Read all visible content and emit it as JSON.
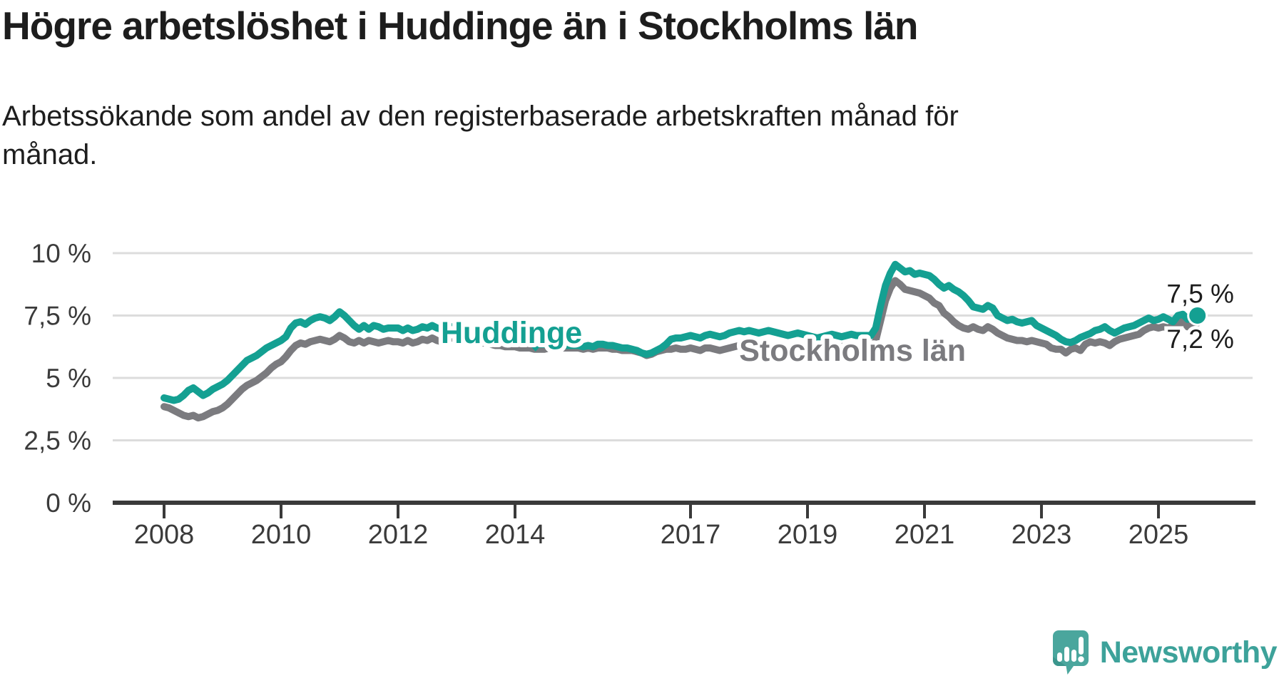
{
  "title": "Högre arbetslöshet i Huddinge än i Stockholms län",
  "subtitle": "Arbetssökande som andel av den registerbaserade arbetskraften månad för månad.",
  "branding": {
    "name": "Newsworthy"
  },
  "colors": {
    "background": "#ffffff",
    "text": "#1d1d1d",
    "axis": "#3a3a3a",
    "axis_text": "#3b3b3b",
    "grid": "#dcdcdc",
    "huddinge": "#14a092",
    "stockholm": "#7b7b7f",
    "logo": "#4aa69d",
    "logo_text": "#3da29a"
  },
  "chart_data": {
    "type": "line",
    "title": "Högre arbetslöshet i Huddinge än i Stockholms län",
    "subtitle": "Arbetssökande som andel av den registerbaserade arbetskraften månad för månad.",
    "unit": "%",
    "frequency": "monthly",
    "x_start": "2008-01",
    "x_end": "2025-09",
    "ylim": [
      0,
      10.7
    ],
    "grid": true,
    "legend_position": "inline-labels",
    "y_axis": {
      "ticks": [
        {
          "label": "10 %",
          "value": 10
        },
        {
          "label": "7,5 %",
          "value": 7.5
        },
        {
          "label": "5 %",
          "value": 5
        },
        {
          "label": "2,5 %",
          "value": 2.5
        },
        {
          "label": "0 %",
          "value": 0
        }
      ]
    },
    "x_axis": {
      "ticks": [
        {
          "label": "2008",
          "year": 2008
        },
        {
          "label": "2010",
          "year": 2010
        },
        {
          "label": "2012",
          "year": 2012
        },
        {
          "label": "2014",
          "year": 2014
        },
        {
          "label": "2017",
          "year": 2017
        },
        {
          "label": "2019",
          "year": 2019
        },
        {
          "label": "2021",
          "year": 2021
        },
        {
          "label": "2023",
          "year": 2023
        },
        {
          "label": "2025",
          "year": 2025
        }
      ]
    },
    "series": [
      {
        "name": "Huddinge",
        "color": "#14a092",
        "end_label": "7,5 %",
        "end_value": 7.5,
        "label_anchor": {
          "year": 2013.94,
          "value": 6.86
        },
        "marker": {
          "year": 2014.35,
          "value": 6.43
        },
        "values": [
          4.2,
          4.15,
          4.1,
          4.15,
          4.3,
          4.5,
          4.6,
          4.45,
          4.3,
          4.4,
          4.55,
          4.65,
          4.75,
          4.9,
          5.1,
          5.3,
          5.5,
          5.7,
          5.8,
          5.9,
          6.05,
          6.2,
          6.3,
          6.4,
          6.5,
          6.65,
          7.0,
          7.2,
          7.25,
          7.15,
          7.3,
          7.4,
          7.45,
          7.4,
          7.3,
          7.45,
          7.65,
          7.5,
          7.3,
          7.1,
          6.95,
          7.1,
          6.95,
          7.1,
          7.05,
          6.95,
          7.0,
          7.0,
          7.0,
          6.9,
          7.0,
          6.9,
          6.95,
          7.05,
          7.0,
          7.1,
          7.0,
          6.95,
          7.0,
          7.05,
          7.0,
          6.95,
          6.9,
          6.85,
          6.8,
          6.75,
          6.7,
          6.65,
          6.6,
          6.55,
          6.5,
          6.5,
          6.5,
          6.45,
          6.45,
          6.4,
          6.4,
          6.35,
          6.35,
          6.3,
          6.3,
          6.3,
          6.3,
          6.3,
          6.3,
          6.3,
          6.25,
          6.3,
          6.25,
          6.35,
          6.35,
          6.3,
          6.3,
          6.25,
          6.2,
          6.2,
          6.15,
          6.1,
          6.0,
          5.95,
          6.0,
          6.1,
          6.2,
          6.35,
          6.55,
          6.6,
          6.6,
          6.65,
          6.7,
          6.65,
          6.6,
          6.7,
          6.75,
          6.7,
          6.65,
          6.7,
          6.8,
          6.85,
          6.9,
          6.85,
          6.9,
          6.85,
          6.8,
          6.85,
          6.9,
          6.85,
          6.8,
          6.75,
          6.7,
          6.75,
          6.8,
          6.75,
          6.7,
          6.65,
          6.6,
          6.65,
          6.7,
          6.75,
          6.7,
          6.65,
          6.7,
          6.75,
          6.7,
          6.7,
          6.7,
          6.7,
          7.0,
          7.9,
          8.7,
          9.2,
          9.55,
          9.4,
          9.25,
          9.3,
          9.15,
          9.2,
          9.15,
          9.1,
          8.95,
          8.75,
          8.6,
          8.7,
          8.55,
          8.45,
          8.3,
          8.1,
          7.85,
          7.8,
          7.75,
          7.9,
          7.8,
          7.5,
          7.4,
          7.3,
          7.35,
          7.25,
          7.2,
          7.25,
          7.3,
          7.1,
          7.0,
          6.9,
          6.8,
          6.7,
          6.55,
          6.45,
          6.42,
          6.5,
          6.62,
          6.7,
          6.78,
          6.9,
          6.95,
          7.05,
          6.9,
          6.8,
          6.9,
          7.0,
          7.05,
          7.1,
          7.2,
          7.3,
          7.4,
          7.3,
          7.35,
          7.45,
          7.35,
          7.25,
          7.5,
          7.55,
          7.35,
          7.45,
          7.5
        ]
      },
      {
        "name": "Stockholms län",
        "color": "#7b7b7f",
        "end_label": "7,2 %",
        "end_value": 7.2,
        "label_anchor": {
          "year": 2019.77,
          "value": 6.14
        },
        "values": [
          3.85,
          3.8,
          3.7,
          3.6,
          3.5,
          3.45,
          3.5,
          3.4,
          3.45,
          3.55,
          3.65,
          3.7,
          3.8,
          3.95,
          4.15,
          4.35,
          4.55,
          4.7,
          4.8,
          4.9,
          5.05,
          5.2,
          5.4,
          5.55,
          5.65,
          5.85,
          6.1,
          6.3,
          6.4,
          6.35,
          6.45,
          6.5,
          6.55,
          6.5,
          6.45,
          6.55,
          6.7,
          6.6,
          6.45,
          6.4,
          6.5,
          6.4,
          6.5,
          6.45,
          6.4,
          6.45,
          6.5,
          6.45,
          6.45,
          6.4,
          6.5,
          6.4,
          6.45,
          6.55,
          6.5,
          6.6,
          6.5,
          6.45,
          6.55,
          6.6,
          6.6,
          6.55,
          6.5,
          6.5,
          6.45,
          6.4,
          6.4,
          6.35,
          6.3,
          6.3,
          6.25,
          6.25,
          6.25,
          6.2,
          6.2,
          6.2,
          6.15,
          6.15,
          6.15,
          6.2,
          6.2,
          6.2,
          6.2,
          6.2,
          6.2,
          6.2,
          6.15,
          6.2,
          6.15,
          6.2,
          6.2,
          6.2,
          6.15,
          6.15,
          6.1,
          6.1,
          6.1,
          6.05,
          6.0,
          5.9,
          5.95,
          6.05,
          6.1,
          6.15,
          6.15,
          6.2,
          6.15,
          6.15,
          6.2,
          6.15,
          6.1,
          6.2,
          6.2,
          6.15,
          6.1,
          6.15,
          6.2,
          6.25,
          6.3,
          6.25,
          6.3,
          6.25,
          6.2,
          6.25,
          6.3,
          6.25,
          6.2,
          6.15,
          6.2,
          6.25,
          6.3,
          6.25,
          6.3,
          6.25,
          6.2,
          6.25,
          6.3,
          6.35,
          6.3,
          6.25,
          6.3,
          6.35,
          6.3,
          6.2,
          6.15,
          6.15,
          6.5,
          7.3,
          8.1,
          8.6,
          8.9,
          8.75,
          8.55,
          8.5,
          8.45,
          8.4,
          8.3,
          8.2,
          8.0,
          7.9,
          7.6,
          7.45,
          7.25,
          7.1,
          7.0,
          6.95,
          7.05,
          6.95,
          6.9,
          7.05,
          6.95,
          6.8,
          6.7,
          6.6,
          6.55,
          6.5,
          6.5,
          6.45,
          6.5,
          6.45,
          6.4,
          6.35,
          6.2,
          6.15,
          6.15,
          6.0,
          6.15,
          6.2,
          6.1,
          6.35,
          6.45,
          6.4,
          6.45,
          6.4,
          6.3,
          6.45,
          6.55,
          6.6,
          6.65,
          6.7,
          6.75,
          6.9,
          7.0,
          7.05,
          7.0,
          7.05,
          7.0,
          7.1,
          7.1,
          7.3,
          7.05,
          7.1,
          7.2
        ]
      }
    ]
  }
}
